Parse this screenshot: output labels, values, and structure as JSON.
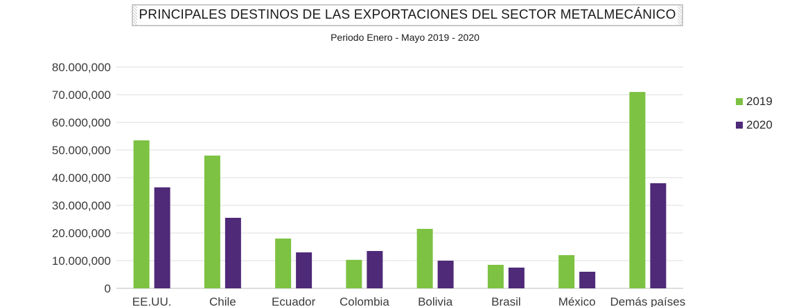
{
  "chart_data": {
    "type": "bar",
    "title": "PRINCIPALES DESTINOS DE LAS EXPORTACIONES DEL SECTOR METALMECÁNICO",
    "subtitle": "Periodo Enero - Mayo 2019 - 2020",
    "categories": [
      "EE.UU.",
      "Chile",
      "Ecuador",
      "Colombia",
      "Bolivia",
      "Brasil",
      "México",
      "Demás países"
    ],
    "series": [
      {
        "name": "2019",
        "color": "#7dc242",
        "values": [
          53500000,
          48000000,
          18000000,
          10300000,
          21500000,
          8500000,
          12000000,
          71000000
        ]
      },
      {
        "name": "2020",
        "color": "#4e2a78",
        "values": [
          36500000,
          25500000,
          13000000,
          13500000,
          10000000,
          7500000,
          6000000,
          38000000
        ]
      }
    ],
    "yticks": [
      "0",
      "10.000,000",
      "20.000,000",
      "30.000,000",
      "40.000,000",
      "50.000,000",
      "60.000,000",
      "70.000,000",
      "80.000,000"
    ],
    "ylim": [
      0,
      80000000
    ],
    "grid": true,
    "legend_position": "right"
  }
}
